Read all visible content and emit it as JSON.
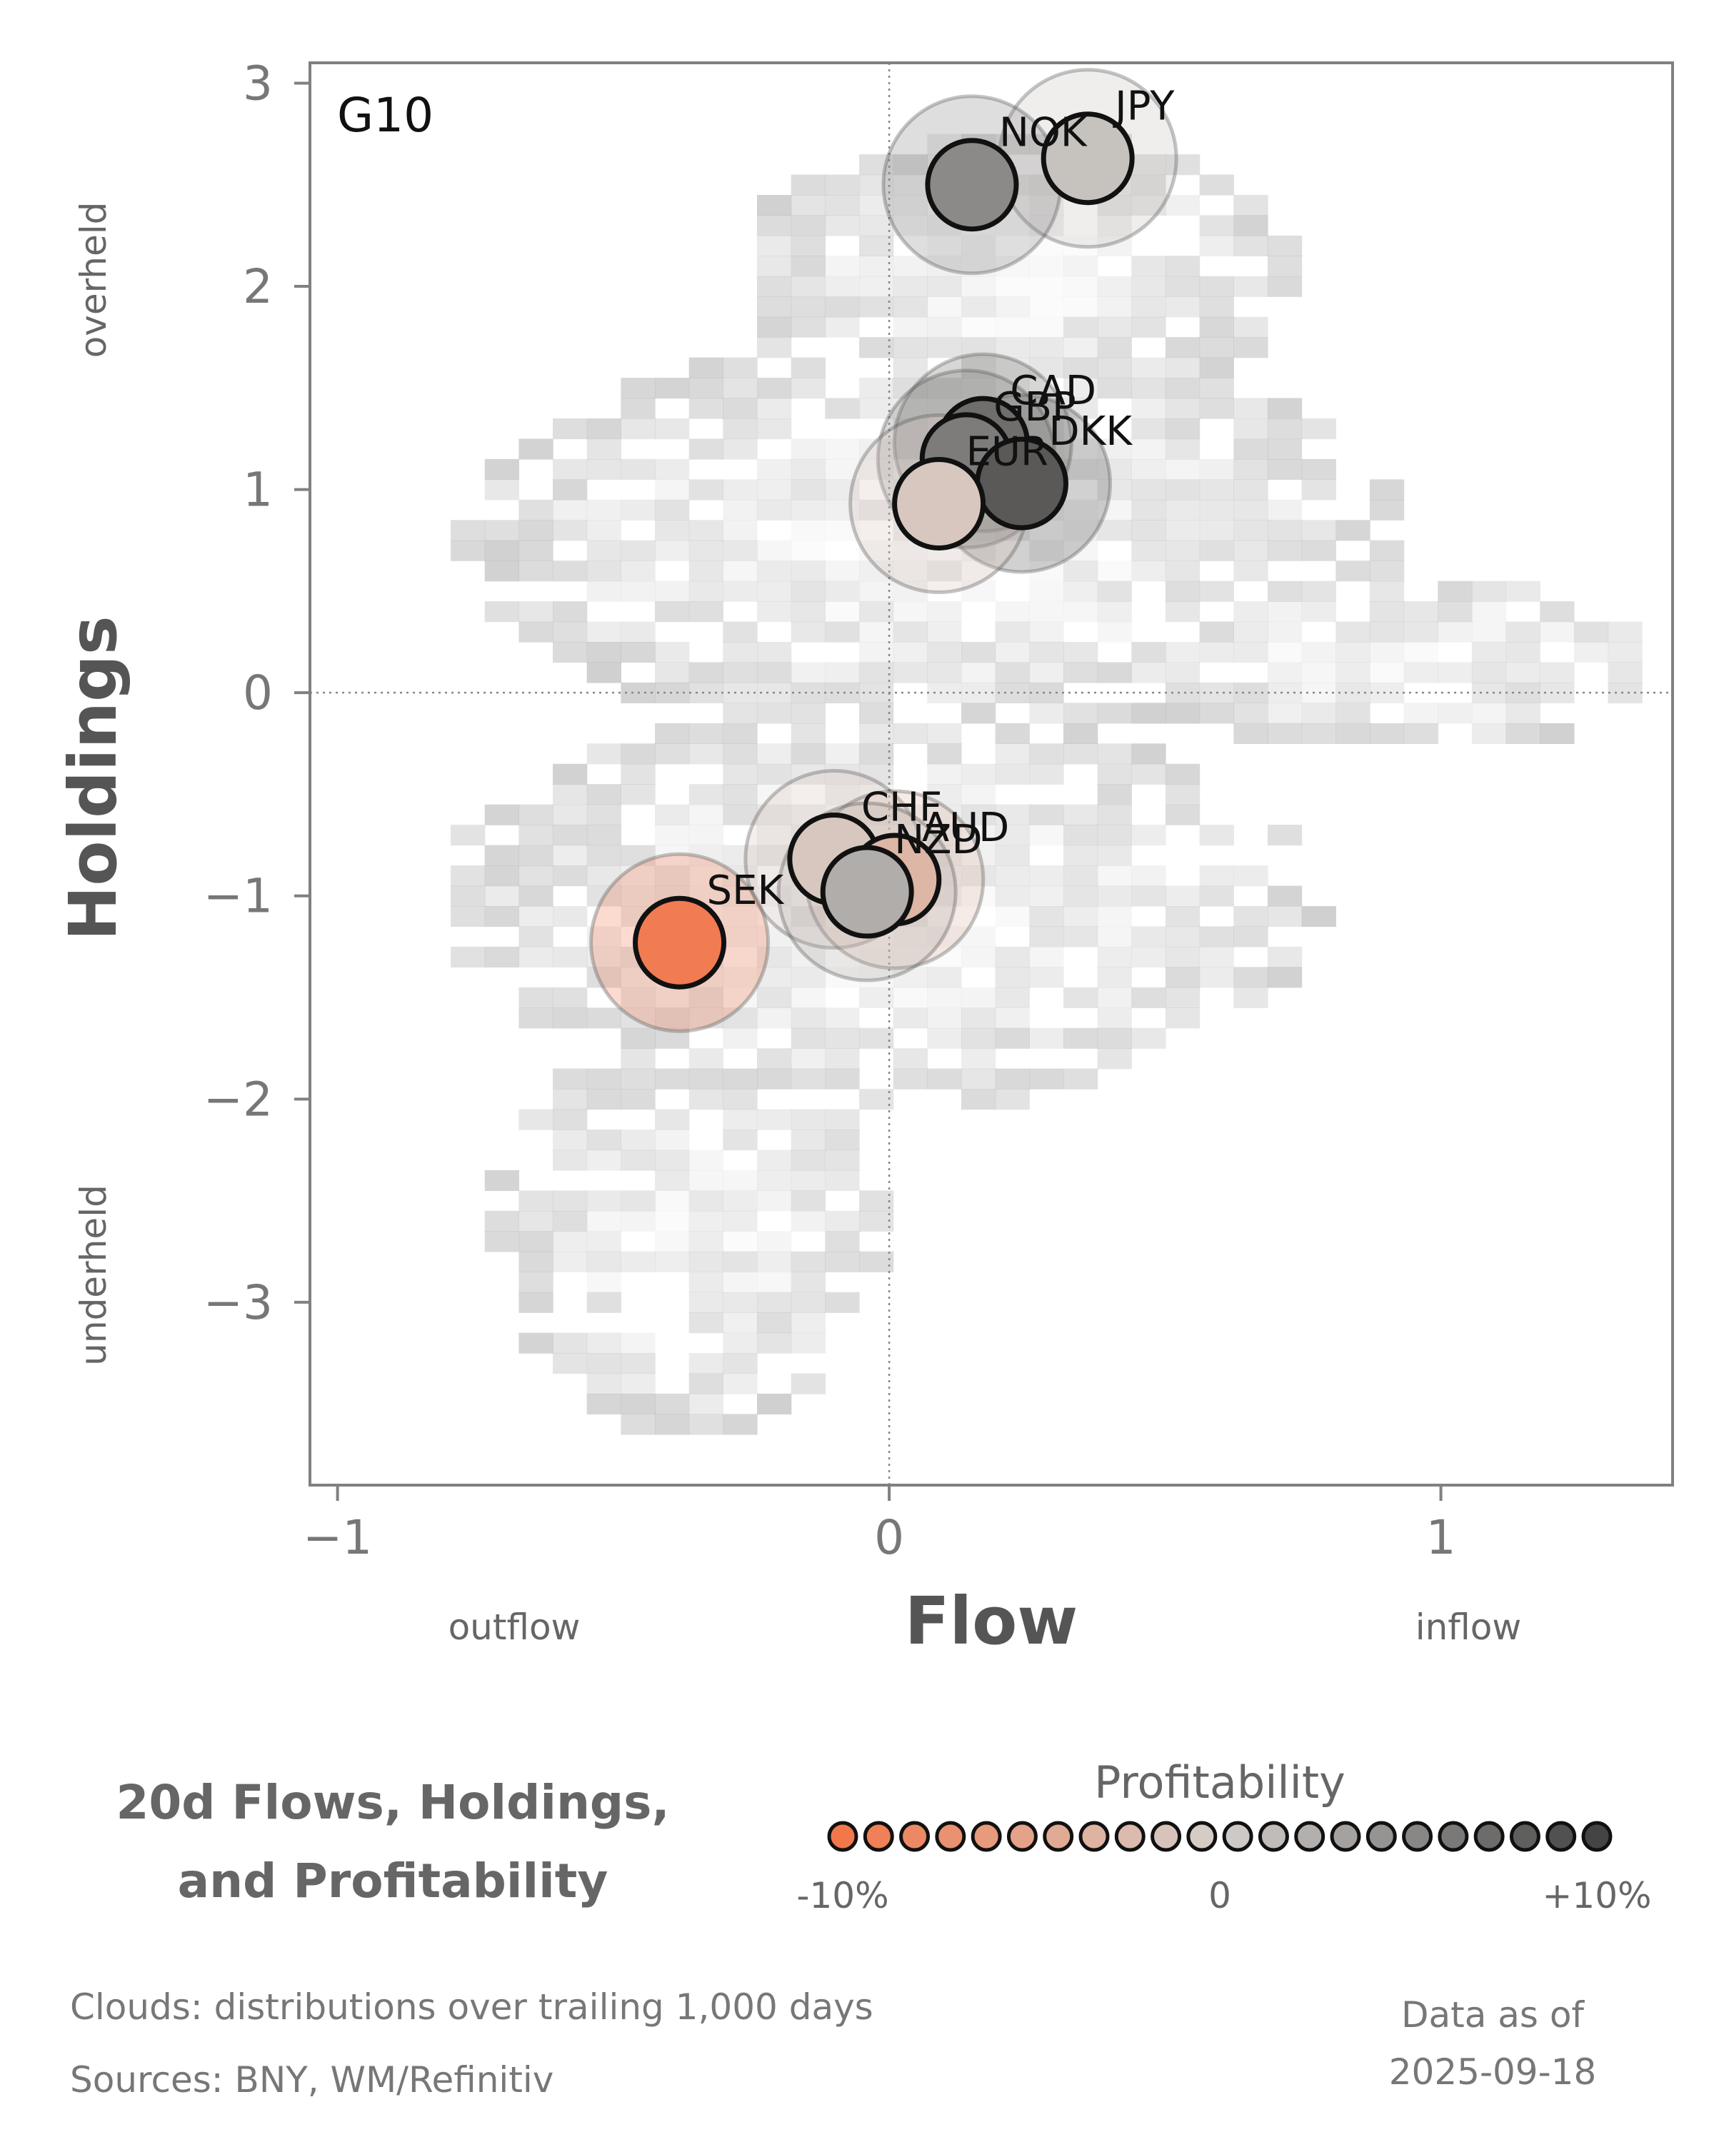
{
  "chart_data": {
    "type": "scatter",
    "panel_label": "G10",
    "xlabel": "Flow",
    "ylabel": "Holdings",
    "x_left_label": "outflow",
    "x_right_label": "inflow",
    "y_top_label": "overheld",
    "y_bottom_label": "underheld",
    "xlim": [
      -1.05,
      1.42
    ],
    "ylim": [
      -3.9,
      3.1
    ],
    "x_ticks": [
      {
        "value": -1,
        "label": "−1"
      },
      {
        "value": 0,
        "label": "0"
      },
      {
        "value": 1,
        "label": "1"
      }
    ],
    "y_ticks": [
      {
        "value": 3,
        "label": "3"
      },
      {
        "value": 2,
        "label": "2"
      },
      {
        "value": 1,
        "label": "1"
      },
      {
        "value": 0,
        "label": "0"
      },
      {
        "value": -1,
        "label": "−1"
      },
      {
        "value": -2,
        "label": "−2"
      },
      {
        "value": -3,
        "label": "−3"
      }
    ],
    "reference_lines": {
      "x": 0,
      "y": 0
    },
    "points": [
      {
        "name": "JPY",
        "flow": 0.36,
        "holdings": 2.63,
        "profitability": 0.01
      },
      {
        "name": "NOK",
        "flow": 0.15,
        "holdings": 2.5,
        "profitability": 0.05
      },
      {
        "name": "CAD",
        "flow": 0.17,
        "holdings": 1.23,
        "profitability": 0.07
      },
      {
        "name": "GBP",
        "flow": 0.14,
        "holdings": 1.15,
        "profitability": 0.06
      },
      {
        "name": "DKK",
        "flow": 0.24,
        "holdings": 1.03,
        "profitability": 0.085
      },
      {
        "name": "EUR",
        "flow": 0.09,
        "holdings": 0.93,
        "profitability": -0.01
      },
      {
        "name": "CHF",
        "flow": -0.1,
        "holdings": -0.82,
        "profitability": -0.01
      },
      {
        "name": "AUD",
        "flow": 0.01,
        "holdings": -0.92,
        "profitability": -0.03
      },
      {
        "name": "NZD",
        "flow": -0.04,
        "holdings": -0.98,
        "profitability": 0.025
      },
      {
        "name": "SEK",
        "flow": -0.38,
        "holdings": -1.23,
        "profitability": -0.095
      }
    ],
    "legend": {
      "title": "Profitability",
      "min_label": "-10%",
      "mid_label": "0",
      "max_label": "+10%",
      "min": -0.1,
      "max": 0.1
    },
    "colors": {
      "negative": "#f2784b",
      "neutral": "#d4d0cc",
      "positive": "#444444",
      "cloud": "#b9b9b9"
    }
  },
  "title_lines": [
    "20d Flows, Holdings,",
    "and Profitability"
  ],
  "notes": [
    "Clouds:  distributions over trailing 1,000 days",
    "Sources:  BNY, WM/Refinitiv"
  ],
  "as_of": [
    "Data as of",
    "2025-09-18"
  ]
}
